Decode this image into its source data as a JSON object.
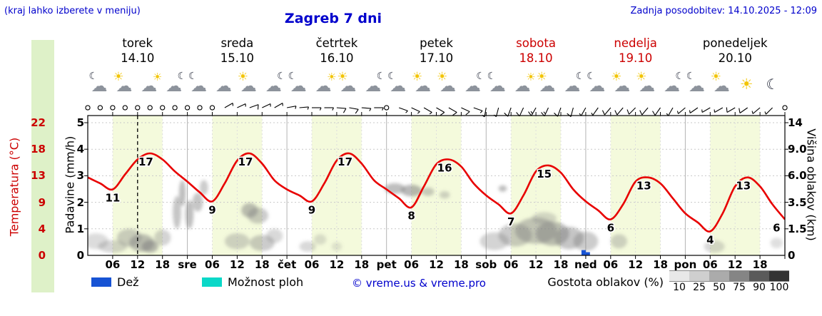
{
  "header": {
    "hint": "(kraj lahko izberete v meniju)",
    "title": "Zagreb 7 dni",
    "updated": "Zadnja posodobitev: 14.10.2025 - 12:09"
  },
  "axes": {
    "temp_label": "Temperatura (°C)",
    "precip_label": "Padavine (mm/h)",
    "cloud_label": "Višina oblakov (km)",
    "temp_ticks": [
      "22",
      "18",
      "13",
      "9",
      "4",
      "0"
    ],
    "precip_ticks": [
      "5",
      "4",
      "3",
      "2",
      "1",
      "0"
    ],
    "cloud_ticks": [
      "14",
      "9.0",
      "6.0",
      "3.5",
      "1.5",
      "0"
    ]
  },
  "days": [
    {
      "name": "torek",
      "date": "14.10",
      "color": "#000000"
    },
    {
      "name": "sreda",
      "date": "15.10",
      "color": "#000000"
    },
    {
      "name": "četrtek",
      "date": "16.10",
      "color": "#000000"
    },
    {
      "name": "petek",
      "date": "17.10",
      "color": "#000000"
    },
    {
      "name": "sobota",
      "date": "18.10",
      "color": "#cc0000"
    },
    {
      "name": "nedelja",
      "date": "19.10",
      "color": "#cc0000"
    },
    {
      "name": "ponedeljek",
      "date": "20.10",
      "color": "#000000"
    }
  ],
  "xaxis": {
    "hour_ticks": [
      "06",
      "12",
      "18"
    ],
    "day_abbr": [
      "sre",
      "čet",
      "pet",
      "sob",
      "ned",
      "pon"
    ]
  },
  "legend": {
    "rain": "Dež",
    "showers": "Možnost ploh",
    "copyright": "© vreme.us & vreme.pro",
    "cloud_density": "Gostota oblakov (%)",
    "density_ticks": [
      "10",
      "25",
      "50",
      "75",
      "90",
      "100"
    ],
    "density_colors": [
      "#e8e8e8",
      "#cfcfcf",
      "#ababab",
      "#858585",
      "#5a5a5a",
      "#333333"
    ],
    "rain_color": "#1753d4",
    "showers_color": "#0ad8c8"
  },
  "colors": {
    "accent": "#0000cc",
    "red": "#cc0000",
    "temp_line": "#e80000",
    "day_band": "#f4fadc",
    "left_strip": "#def1c8",
    "cloud": "#808080"
  },
  "chart_data": {
    "type": "line",
    "title": "Zagreb 7 dni",
    "x_hours": {
      "start": 0,
      "end": 168,
      "step": 3
    },
    "now_hour": 12,
    "daylight_hours": [
      6,
      18
    ],
    "temp_axis_c": [
      0,
      4,
      9,
      13,
      18,
      22
    ],
    "precip_axis_mmh": [
      0,
      1,
      2,
      3,
      4,
      5
    ],
    "cloud_height_axis_km": [
      0,
      1.5,
      3.5,
      6,
      9,
      14
    ],
    "temperature_c": [
      13,
      12,
      11,
      13.5,
      16,
      17,
      16,
      14,
      12.3,
      10.5,
      9,
      12,
      15.8,
      17,
      15.3,
      12.5,
      11,
      10,
      9,
      12,
      15.8,
      17,
      15.3,
      12.5,
      11,
      9.5,
      8,
      11.5,
      15.2,
      16,
      14.8,
      12,
      10,
      8.5,
      7,
      10,
      14,
      15,
      13.8,
      11,
      9,
      7.5,
      6,
      8.5,
      12.3,
      13,
      12,
      9.5,
      7,
      5.5,
      4,
      7,
      11.5,
      13,
      11.5,
      8.5,
      6
    ],
    "temp_point_labels": [
      [
        6,
        11
      ],
      [
        14,
        17
      ],
      [
        30,
        9
      ],
      [
        38,
        17
      ],
      [
        54,
        9
      ],
      [
        62,
        17
      ],
      [
        78,
        8
      ],
      [
        86,
        16
      ],
      [
        102,
        7
      ],
      [
        110,
        15
      ],
      [
        126,
        6
      ],
      [
        134,
        13
      ],
      [
        150,
        4
      ],
      [
        158,
        13
      ],
      [
        166,
        6
      ]
    ],
    "rain_mmh": [
      [
        119.5,
        0.2
      ],
      [
        120.5,
        0.12
      ]
    ],
    "clouds": [
      [
        2,
        0.8,
        6,
        0.9,
        0.28
      ],
      [
        6,
        0.5,
        7,
        0.7,
        0.32
      ],
      [
        10,
        1.0,
        6,
        1.0,
        0.38
      ],
      [
        13,
        0.7,
        6,
        1.0,
        0.5
      ],
      [
        15,
        0.5,
        4,
        0.7,
        0.55
      ],
      [
        18,
        1.0,
        4,
        0.9,
        0.35
      ],
      [
        21.5,
        2.8,
        2,
        2.6,
        0.45
      ],
      [
        22.8,
        4.4,
        1.6,
        2.4,
        0.5
      ],
      [
        24.5,
        2.6,
        2,
        2.2,
        0.5
      ],
      [
        26.5,
        3.6,
        2.5,
        1.6,
        0.45
      ],
      [
        28,
        4.9,
        2,
        1.4,
        0.4
      ],
      [
        36,
        0.8,
        6,
        0.9,
        0.35
      ],
      [
        39,
        2.9,
        4,
        1.1,
        0.5
      ],
      [
        41,
        2.5,
        5,
        1.2,
        0.4
      ],
      [
        42,
        0.7,
        6,
        0.9,
        0.4
      ],
      [
        45,
        1.1,
        4,
        0.8,
        0.3
      ],
      [
        53,
        0.5,
        4,
        0.6,
        0.3
      ],
      [
        56,
        0.9,
        3,
        0.6,
        0.25
      ],
      [
        60,
        0.5,
        2.5,
        0.5,
        0.2
      ],
      [
        74,
        4.8,
        5,
        1.0,
        0.5
      ],
      [
        78,
        4.6,
        5,
        1.1,
        0.55
      ],
      [
        82,
        4.5,
        3,
        0.8,
        0.4
      ],
      [
        86,
        4.2,
        2.5,
        0.7,
        0.35
      ],
      [
        98,
        0.8,
        7,
        1.0,
        0.35
      ],
      [
        103,
        1.2,
        8,
        1.4,
        0.4
      ],
      [
        108,
        1.5,
        10,
        1.7,
        0.45
      ],
      [
        112,
        1.3,
        8,
        1.5,
        0.5
      ],
      [
        116,
        1.0,
        7,
        1.3,
        0.45
      ],
      [
        120,
        0.8,
        6,
        1.1,
        0.4
      ],
      [
        110,
        2.3,
        6,
        0.9,
        0.3
      ],
      [
        100,
        4.8,
        2,
        0.6,
        0.5
      ],
      [
        128,
        0.8,
        4,
        0.8,
        0.35
      ],
      [
        151,
        0.5,
        5,
        0.7,
        0.3
      ],
      [
        166,
        0.7,
        3,
        0.6,
        0.25
      ]
    ],
    "wind": {
      "step_h": 3,
      "speed_kt": [
        0,
        0,
        0,
        0,
        0,
        0,
        0,
        0,
        0,
        0,
        0,
        5,
        8,
        10,
        8,
        5,
        5,
        5,
        5,
        8,
        10,
        10,
        8,
        5,
        0,
        5,
        5,
        8,
        12,
        12,
        10,
        8,
        5,
        8,
        10,
        12,
        15,
        15,
        12,
        10,
        8,
        8,
        10,
        10,
        12,
        12,
        10,
        8,
        5,
        5,
        8,
        8,
        10,
        10,
        8,
        5,
        0
      ],
      "dir_deg": [
        0,
        0,
        0,
        0,
        0,
        0,
        0,
        0,
        0,
        0,
        0,
        60,
        65,
        70,
        65,
        60,
        80,
        85,
        90,
        90,
        95,
        100,
        95,
        90,
        0,
        110,
        115,
        120,
        120,
        120,
        115,
        110,
        190,
        195,
        200,
        205,
        210,
        205,
        200,
        195,
        210,
        215,
        220,
        220,
        225,
        220,
        215,
        210,
        230,
        235,
        240,
        240,
        240,
        235,
        230,
        225,
        0
      ]
    },
    "icons": [
      "moon-cloud",
      "sun-cloud",
      "cloud-sun",
      "cloud-moon",
      "moon-cloud",
      "cloud",
      "sun-cloud",
      "cloud-moon",
      "moon-cloud",
      "cloud-sun",
      "sun-cloud",
      "cloud-moon",
      "moon-cloud",
      "sun-cloud",
      "sun-cloud",
      "cloud-moon",
      "moon-cloud",
      "cloud-sun",
      "sun-cloud",
      "cloud-moon",
      "moon-cloud",
      "sun-cloud",
      "sun-cloud",
      "cloud-moon",
      "moon-cloud",
      "sun-cloud",
      "sun",
      "moon"
    ]
  }
}
